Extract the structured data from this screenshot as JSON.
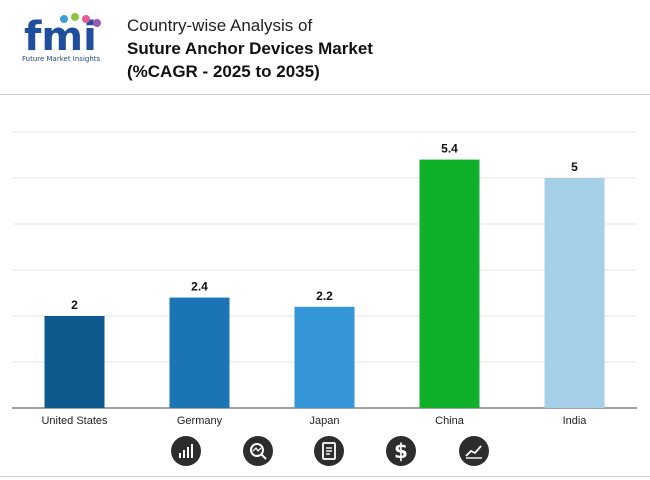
{
  "header": {
    "brand": "fmi",
    "brand_tagline": "Future Market Insights",
    "title_line1": "Country-wise Analysis of",
    "title_line2": "Suture Anchor Devices Market",
    "title_line3": "(%CAGR - 2025 to 2035)"
  },
  "colors": {
    "United States": "#0e5a8f",
    "Germany": "#1b74b4",
    "Japan": "#3496d6",
    "China": "#0fb128",
    "India": "#a6cfe8"
  },
  "chart_data": {
    "type": "bar",
    "categories": [
      "United States",
      "Germany",
      "Japan",
      "China",
      "India"
    ],
    "values": [
      2,
      2.4,
      2.2,
      5.4,
      5
    ],
    "value_labels": [
      "2",
      "2.4",
      "2.2",
      "5.4",
      "5"
    ],
    "ylim": [
      0,
      6
    ],
    "grid": true,
    "title": "",
    "xlabel": "",
    "ylabel": ""
  },
  "footer_icons": [
    "bar-chart-icon",
    "magnifier-chart-icon",
    "document-icon",
    "dollar-icon",
    "line-chart-icon"
  ]
}
